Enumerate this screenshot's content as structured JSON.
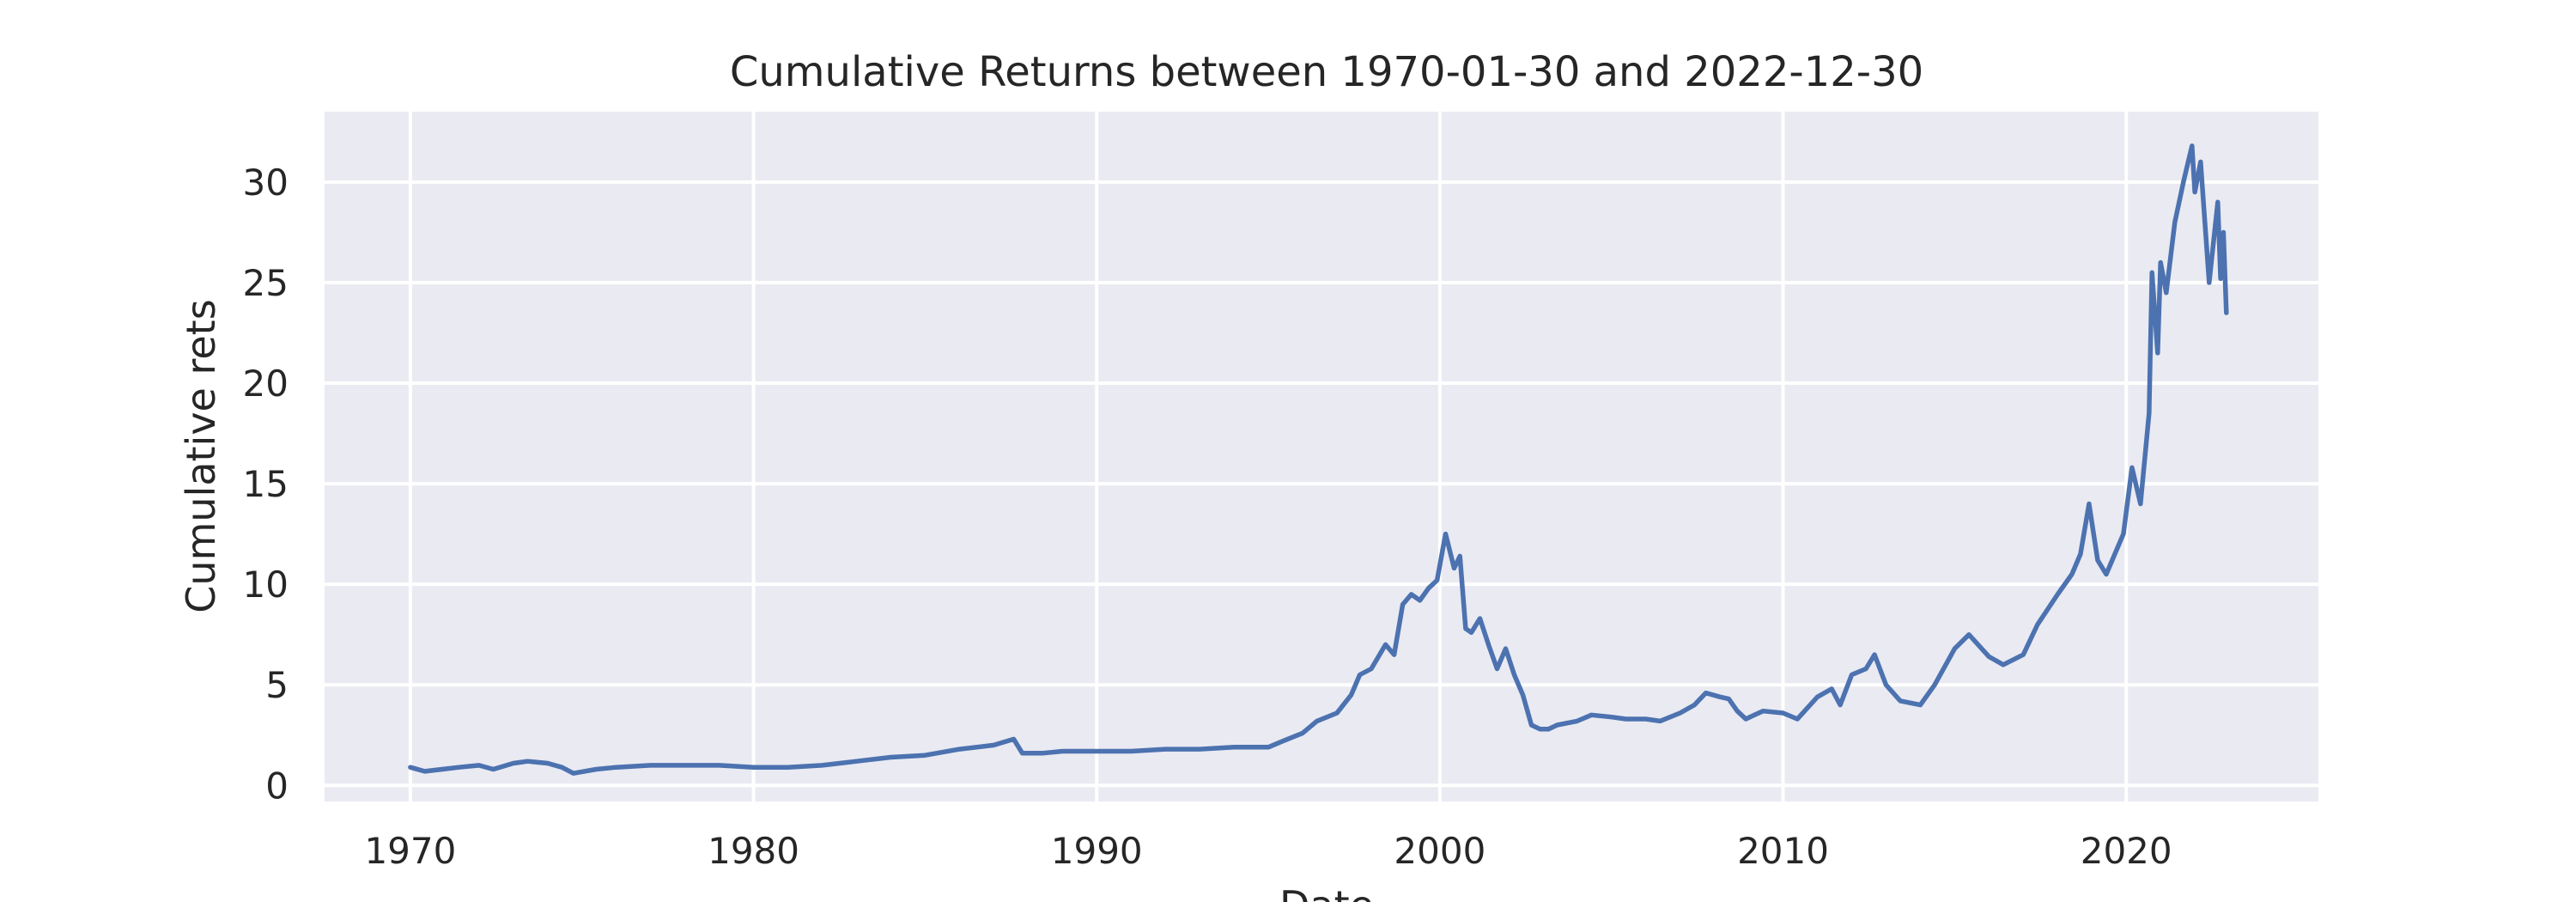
{
  "chart_data": {
    "type": "line",
    "title": "Cumulative Returns between 1970-01-30 and 2022-12-30",
    "xlabel": "Date",
    "ylabel": "Cumulative rets",
    "xlim": [
      1967.5,
      2025.6
    ],
    "ylim": [
      -0.8,
      33.5
    ],
    "x_ticks": [
      1970,
      1980,
      1990,
      2000,
      2010,
      2020
    ],
    "x_tick_labels": [
      "1970",
      "1980",
      "1990",
      "2000",
      "2010",
      "2020"
    ],
    "y_ticks": [
      0,
      5,
      10,
      15,
      20,
      25,
      30
    ],
    "y_tick_labels": [
      "0",
      "5",
      "10",
      "15",
      "20",
      "25",
      "30"
    ],
    "grid": true,
    "legend": "none",
    "colors": {
      "series": "#4c72b0",
      "background": "#eaeaf2",
      "grid": "#ffffff"
    },
    "series": [
      {
        "x": [
          "1970-01",
          "1970-06",
          "1971-06",
          "1972-01",
          "1972-06",
          "1973-01",
          "1973-06",
          "1974-01",
          "1974-06",
          "1974-10",
          "1975-06",
          "1976-01",
          "1977-01",
          "1978-01",
          "1979-01",
          "1980-01",
          "1981-01",
          "1982-01",
          "1983-01",
          "1984-01",
          "1985-01",
          "1986-01",
          "1987-01",
          "1987-08",
          "1987-11",
          "1988-06",
          "1989-01",
          "1990-01",
          "1991-01",
          "1992-01",
          "1993-01",
          "1994-01",
          "1995-01",
          "1995-06",
          "1996-01",
          "1996-06",
          "1997-01",
          "1997-06",
          "1997-09",
          "1998-01",
          "1998-06",
          "1998-09",
          "1998-12",
          "1999-03",
          "1999-06",
          "1999-09",
          "1999-12",
          "2000-03",
          "2000-06",
          "2000-08",
          "2000-10",
          "2000-12",
          "2001-03",
          "2001-06",
          "2001-09",
          "2001-12",
          "2002-03",
          "2002-06",
          "2002-09",
          "2002-12",
          "2003-03",
          "2003-06",
          "2004-01",
          "2004-06",
          "2005-01",
          "2005-06",
          "2006-01",
          "2006-06",
          "2007-01",
          "2007-06",
          "2007-10",
          "2008-03",
          "2008-06",
          "2008-09",
          "2008-12",
          "2009-03",
          "2009-06",
          "2010-01",
          "2010-06",
          "2011-01",
          "2011-06",
          "2011-09",
          "2012-01",
          "2012-06",
          "2012-09",
          "2013-01",
          "2013-06",
          "2014-01",
          "2014-06",
          "2015-01",
          "2015-06",
          "2016-01",
          "2016-06",
          "2017-01",
          "2017-06",
          "2018-01",
          "2018-06",
          "2018-09",
          "2018-12",
          "2019-03",
          "2019-06",
          "2019-09",
          "2019-12",
          "2020-03",
          "2020-06",
          "2020-09",
          "2020-10",
          "2020-12",
          "2021-01",
          "2021-03",
          "2021-06",
          "2021-09",
          "2021-12",
          "2022-01",
          "2022-03",
          "2022-06",
          "2022-09",
          "2022-10",
          "2022-11",
          "2022-12"
        ],
        "y": [
          0.9,
          0.7,
          0.9,
          1.0,
          0.8,
          1.1,
          1.2,
          1.1,
          0.9,
          0.6,
          0.8,
          0.9,
          1.0,
          1.0,
          1.0,
          0.9,
          0.9,
          1.0,
          1.2,
          1.4,
          1.5,
          1.8,
          2.0,
          2.3,
          1.6,
          1.6,
          1.7,
          1.7,
          1.7,
          1.8,
          1.8,
          1.9,
          1.9,
          2.2,
          2.6,
          3.2,
          3.6,
          4.5,
          5.5,
          5.8,
          7.0,
          6.5,
          9.0,
          9.5,
          9.2,
          9.8,
          10.2,
          12.5,
          10.8,
          11.4,
          7.8,
          7.6,
          8.3,
          7.0,
          5.8,
          6.8,
          5.5,
          4.5,
          3.0,
          2.8,
          2.8,
          3.0,
          3.2,
          3.5,
          3.4,
          3.3,
          3.3,
          3.2,
          3.6,
          4.0,
          4.6,
          4.4,
          4.3,
          3.7,
          3.3,
          3.5,
          3.7,
          3.6,
          3.3,
          4.4,
          4.8,
          4.0,
          5.5,
          5.8,
          6.5,
          5.0,
          4.2,
          4.0,
          5.0,
          6.8,
          7.5,
          6.4,
          6.0,
          6.5,
          8.0,
          9.5,
          10.5,
          11.5,
          14.0,
          11.2,
          10.5,
          11.5,
          12.5,
          15.8,
          14.0,
          18.5,
          25.5,
          21.5,
          26.0,
          24.5,
          28.0,
          30.0,
          31.8,
          29.5,
          31.0,
          25.0,
          29.0,
          25.2,
          27.5,
          23.5
        ]
      }
    ]
  }
}
